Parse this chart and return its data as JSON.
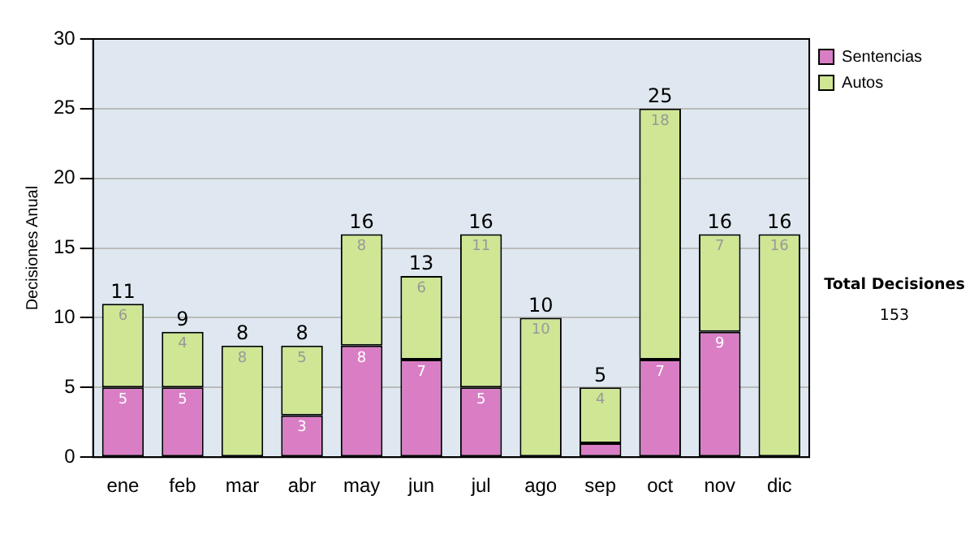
{
  "chart_data": {
    "type": "bar",
    "stacked": true,
    "ylabel": "Decisiones Anual",
    "categories": [
      "ene",
      "feb",
      "mar",
      "abr",
      "may",
      "jun",
      "jul",
      "ago",
      "sep",
      "oct",
      "nov",
      "dic"
    ],
    "series": [
      {
        "name": "Sentencias",
        "color": "#d97ec4",
        "values": [
          5,
          5,
          0,
          3,
          8,
          7,
          5,
          0,
          1,
          7,
          9,
          0
        ],
        "value_labels": [
          "5",
          "5",
          null,
          "3",
          "8",
          "7",
          "5",
          null,
          null,
          "7",
          "9",
          null
        ]
      },
      {
        "name": "Autos",
        "color": "#cfe694",
        "values": [
          6,
          4,
          8,
          5,
          8,
          6,
          11,
          10,
          4,
          18,
          7,
          16
        ],
        "value_labels": [
          "6",
          "4",
          "8",
          "5",
          "8",
          "6",
          "11",
          "10",
          "4",
          "18",
          "7",
          "16"
        ]
      }
    ],
    "totals": [
      "11",
      "9",
      "8",
      "8",
      "16",
      "13",
      "16",
      "10",
      "5",
      "25",
      "16",
      "16"
    ],
    "ylim": [
      0,
      30
    ],
    "yticks": [
      0,
      5,
      10,
      15,
      20,
      25,
      30
    ],
    "grid": "y",
    "legend": "right",
    "annotations": [
      "Total Decisiones",
      "153"
    ]
  }
}
